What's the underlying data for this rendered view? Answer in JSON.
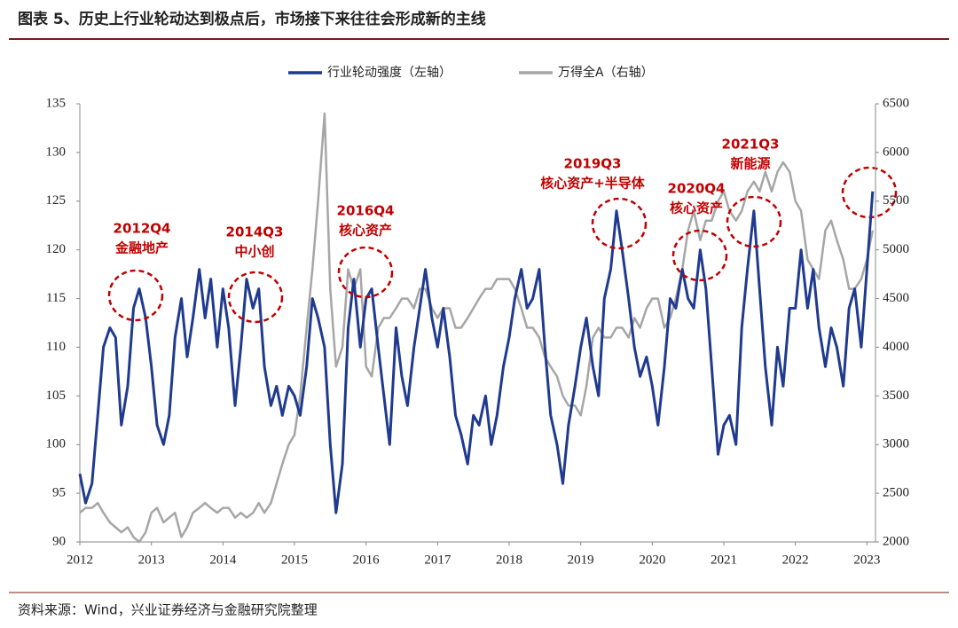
{
  "chart_data": {
    "type": "line",
    "title": "图表 5、历史上行业轮动达到极点后，市场接下来往往会形成新的主线",
    "source": "资料来源：Wind，兴业证券经济与金融研究院整理",
    "legend": "top",
    "x": [
      2012.0,
      2012.08,
      2012.17,
      2012.25,
      2012.33,
      2012.42,
      2012.5,
      2012.58,
      2012.67,
      2012.75,
      2012.83,
      2012.92,
      2013.0,
      2013.08,
      2013.17,
      2013.25,
      2013.33,
      2013.42,
      2013.5,
      2013.58,
      2013.67,
      2013.75,
      2013.83,
      2013.92,
      2014.0,
      2014.08,
      2014.17,
      2014.25,
      2014.33,
      2014.42,
      2014.5,
      2014.58,
      2014.67,
      2014.75,
      2014.83,
      2014.92,
      2015.0,
      2015.08,
      2015.17,
      2015.25,
      2015.33,
      2015.42,
      2015.5,
      2015.58,
      2015.67,
      2015.75,
      2015.83,
      2015.92,
      2016.0,
      2016.08,
      2016.17,
      2016.25,
      2016.33,
      2016.42,
      2016.5,
      2016.58,
      2016.67,
      2016.75,
      2016.83,
      2016.92,
      2017.0,
      2017.08,
      2017.17,
      2017.25,
      2017.33,
      2017.42,
      2017.5,
      2017.58,
      2017.67,
      2017.75,
      2017.83,
      2017.92,
      2018.0,
      2018.08,
      2018.17,
      2018.25,
      2018.33,
      2018.42,
      2018.5,
      2018.58,
      2018.67,
      2018.75,
      2018.83,
      2018.92,
      2019.0,
      2019.08,
      2019.17,
      2019.25,
      2019.33,
      2019.42,
      2019.5,
      2019.58,
      2019.67,
      2019.75,
      2019.83,
      2019.92,
      2020.0,
      2020.08,
      2020.17,
      2020.25,
      2020.33,
      2020.42,
      2020.5,
      2020.58,
      2020.67,
      2020.75,
      2020.83,
      2020.92,
      2021.0,
      2021.08,
      2021.17,
      2021.25,
      2021.33,
      2021.42,
      2021.5,
      2021.58,
      2021.67,
      2021.75,
      2021.83,
      2021.92,
      2022.0,
      2022.08,
      2022.17,
      2022.25,
      2022.33,
      2022.42,
      2022.5,
      2022.58,
      2022.67,
      2022.75,
      2022.83,
      2022.92,
      2023.0,
      2023.08
    ],
    "series": [
      {
        "name": "行业轮动强度（左轴）",
        "color": "#1f3a8f",
        "axis": "y",
        "values": [
          97,
          94,
          96,
          103,
          110,
          112,
          111,
          102,
          106,
          114,
          116,
          113,
          108,
          102,
          100,
          103,
          111,
          115,
          109,
          113,
          118,
          113,
          117,
          110,
          116,
          112,
          104,
          110,
          117,
          114,
          116,
          108,
          104,
          106,
          103,
          106,
          105,
          103,
          108,
          115,
          113,
          110,
          100,
          93,
          98,
          112,
          117,
          110,
          115,
          116,
          110,
          105,
          100,
          112,
          107,
          104,
          110,
          114,
          118,
          113,
          110,
          114,
          109,
          103,
          101,
          98,
          103,
          102,
          105,
          100,
          103,
          108,
          111,
          115,
          118,
          114,
          115,
          118,
          110,
          103,
          100,
          96,
          102,
          106,
          110,
          113,
          108,
          105,
          115,
          118,
          124,
          120,
          115,
          110,
          107,
          109,
          106,
          102,
          108,
          115,
          114,
          118,
          115,
          114,
          120,
          116,
          108,
          99,
          102,
          103,
          100,
          112,
          118,
          124,
          116,
          108,
          102,
          110,
          106,
          114,
          114,
          120,
          114,
          118,
          112,
          108,
          112,
          110,
          106,
          114,
          116,
          110,
          118,
          126
        ]
      },
      {
        "name": "万得全A（右轴）",
        "color": "#a6a6a6",
        "axis": "y2",
        "values": [
          2300,
          2350,
          2350,
          2400,
          2300,
          2200,
          2150,
          2100,
          2150,
          2050,
          2000,
          2100,
          2300,
          2350,
          2200,
          2250,
          2300,
          2050,
          2150,
          2300,
          2350,
          2400,
          2350,
          2300,
          2350,
          2350,
          2250,
          2300,
          2250,
          2300,
          2400,
          2300,
          2400,
          2600,
          2800,
          3000,
          3100,
          3500,
          4200,
          4800,
          5500,
          6400,
          4600,
          3800,
          4000,
          4800,
          4600,
          4800,
          3800,
          3700,
          4200,
          4300,
          4300,
          4400,
          4500,
          4500,
          4400,
          4600,
          4600,
          4400,
          4300,
          4400,
          4400,
          4200,
          4200,
          4300,
          4400,
          4500,
          4600,
          4600,
          4700,
          4700,
          4700,
          4600,
          4400,
          4200,
          4200,
          4100,
          3900,
          3800,
          3700,
          3500,
          3400,
          3400,
          3300,
          3600,
          4100,
          4200,
          4100,
          4100,
          4200,
          4200,
          4100,
          4300,
          4200,
          4400,
          4500,
          4500,
          4200,
          4300,
          4500,
          4800,
          5200,
          5400,
          5100,
          5300,
          5300,
          5500,
          5600,
          5400,
          5300,
          5400,
          5600,
          5700,
          5600,
          5800,
          5600,
          5800,
          5900,
          5800,
          5500,
          5400,
          4900,
          4800,
          4700,
          5200,
          5300,
          5100,
          4900,
          4600,
          4600,
          4700,
          4900,
          5200
        ]
      }
    ],
    "xlim": [
      2012,
      2023.12
    ],
    "xticks": [
      2012,
      2013,
      2014,
      2015,
      2016,
      2017,
      2018,
      2019,
      2020,
      2021,
      2022,
      2023
    ],
    "ylim": [
      90,
      135
    ],
    "yticks": [
      90,
      95,
      100,
      105,
      110,
      115,
      120,
      125,
      130,
      135
    ],
    "y2lim": [
      2000,
      6500
    ],
    "y2ticks": [
      2000,
      2500,
      3000,
      3500,
      4000,
      4500,
      5000,
      5500,
      6000,
      6500
    ],
    "annotations": [
      {
        "lines": [
          "2012Q4",
          "金融地产"
        ]
      },
      {
        "lines": [
          "2014Q3",
          "中小创"
        ]
      },
      {
        "lines": [
          "2016Q4",
          "核心资产"
        ]
      },
      {
        "lines": [
          "2019Q3",
          "核心资产+半导体"
        ]
      },
      {
        "lines": [
          "2020Q4",
          "核心资产"
        ]
      },
      {
        "lines": [
          "2021Q3",
          "新能源"
        ]
      }
    ]
  }
}
